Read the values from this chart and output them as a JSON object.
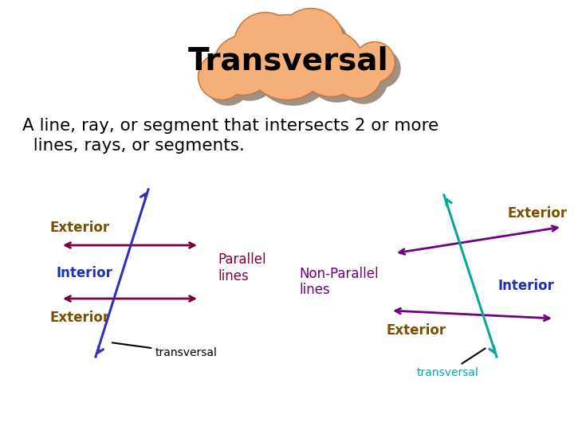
{
  "title": "Transversal",
  "subtitle_line1": "A line, ray, or segment that intersects 2 or more",
  "subtitle_line2": "  lines, rays, or segments.",
  "cloud_color": "#F5B07A",
  "cloud_shadow": "#A09080",
  "cloud_outline": "#C07840",
  "bg_color": "#FFFFFF",
  "text_color": "#000000",
  "exterior_color": "#7B4F00",
  "interior_color": "#2030AA",
  "transversal_color_left": "#3030BB",
  "transversal_color_right": "#00A8A0",
  "parallel_line_color": "#7B0040",
  "nonparallel_line_color": "#700080",
  "parallel_label_color": "#800040",
  "nonparallel_label_color": "#700080",
  "annotation_color": "#000000",
  "transversal_label_color_right": "#00A8A0"
}
